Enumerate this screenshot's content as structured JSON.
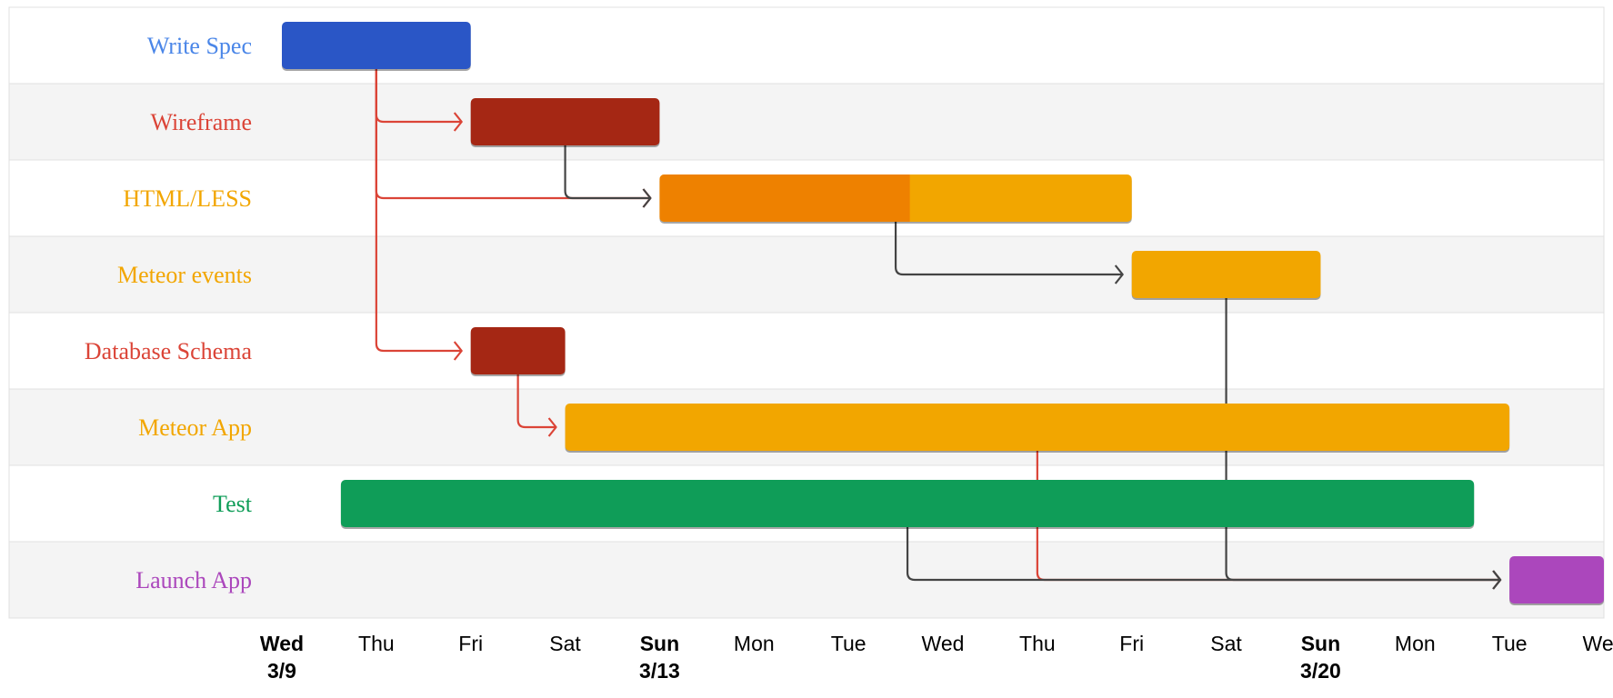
{
  "chart_data": {
    "type": "gantt",
    "title": "",
    "x_axis": {
      "start": "2016-03-09",
      "end": "2016-03-23",
      "ticks": [
        {
          "date": "2016-03-09",
          "label": "Wed",
          "sub": "3/9",
          "bold": true
        },
        {
          "date": "2016-03-10",
          "label": "Thu",
          "sub": "",
          "bold": false
        },
        {
          "date": "2016-03-11",
          "label": "Fri",
          "sub": "",
          "bold": false
        },
        {
          "date": "2016-03-12",
          "label": "Sat",
          "sub": "",
          "bold": false
        },
        {
          "date": "2016-03-13",
          "label": "Sun",
          "sub": "3/13",
          "bold": true
        },
        {
          "date": "2016-03-14",
          "label": "Mon",
          "sub": "",
          "bold": false
        },
        {
          "date": "2016-03-15",
          "label": "Tue",
          "sub": "",
          "bold": false
        },
        {
          "date": "2016-03-16",
          "label": "Wed",
          "sub": "",
          "bold": false
        },
        {
          "date": "2016-03-17",
          "label": "Thu",
          "sub": "",
          "bold": false
        },
        {
          "date": "2016-03-18",
          "label": "Fri",
          "sub": "",
          "bold": false
        },
        {
          "date": "2016-03-19",
          "label": "Sat",
          "sub": "",
          "bold": false
        },
        {
          "date": "2016-03-20",
          "label": "Sun",
          "sub": "3/20",
          "bold": true
        },
        {
          "date": "2016-03-21",
          "label": "Mon",
          "sub": "",
          "bold": false
        },
        {
          "date": "2016-03-22",
          "label": "Tue",
          "sub": "",
          "bold": false
        },
        {
          "date": "2016-03-23",
          "label": "Wed",
          "sub": "",
          "bold": false
        }
      ]
    },
    "tasks": [
      {
        "id": "spec",
        "name": "Write Spec",
        "start": "2016-03-09 00:00",
        "end": "2016-03-11 00:00",
        "color": "#2a56c6",
        "label_color": "#4a86e8",
        "percent_complete": 100,
        "dependencies": []
      },
      {
        "id": "wire",
        "name": "Wireframe",
        "start": "2016-03-11 00:00",
        "end": "2016-03-13 00:00",
        "color": "#a52714",
        "label_color": "#db4437",
        "percent_complete": 100,
        "dependencies": [
          "spec"
        ]
      },
      {
        "id": "html",
        "name": "HTML/LESS",
        "start": "2016-03-13 00:00",
        "end": "2016-03-18 00:00",
        "color": "#f2a600",
        "label_color": "#f2a600",
        "percent_complete": 53,
        "progress_color": "#ee8100",
        "dependencies": [
          "spec",
          "wire"
        ]
      },
      {
        "id": "events",
        "name": "Meteor events",
        "start": "2016-03-18 00:00",
        "end": "2016-03-20 00:00",
        "color": "#f2a600",
        "label_color": "#f2a600",
        "percent_complete": 0,
        "dependencies": [
          "html"
        ]
      },
      {
        "id": "schema",
        "name": "Database Schema",
        "start": "2016-03-11 00:00",
        "end": "2016-03-12 00:00",
        "color": "#a52714",
        "label_color": "#db4437",
        "percent_complete": 100,
        "dependencies": [
          "spec"
        ]
      },
      {
        "id": "app",
        "name": "Meteor App",
        "start": "2016-03-12 00:00",
        "end": "2016-03-22 00:00",
        "color": "#f2a600",
        "label_color": "#f2a600",
        "percent_complete": 0,
        "dependencies": [
          "schema"
        ]
      },
      {
        "id": "test",
        "name": "Test",
        "start": "2016-03-09 15:00",
        "end": "2016-03-21 15:00",
        "color": "#0f9d58",
        "label_color": "#0f9d58",
        "percent_complete": 0,
        "dependencies": []
      },
      {
        "id": "launch",
        "name": "Launch App",
        "start": "2016-03-22 00:00",
        "end": "2016-03-23 00:00",
        "color": "#ab47bc",
        "label_color": "#ab47bc",
        "percent_complete": 0,
        "dependencies": [
          "app",
          "test",
          "events"
        ]
      }
    ],
    "critical_path_color": "#db4437",
    "arrow_color": "#444444",
    "row_colors": [
      "#ffffff",
      "#f4f4f4"
    ]
  }
}
